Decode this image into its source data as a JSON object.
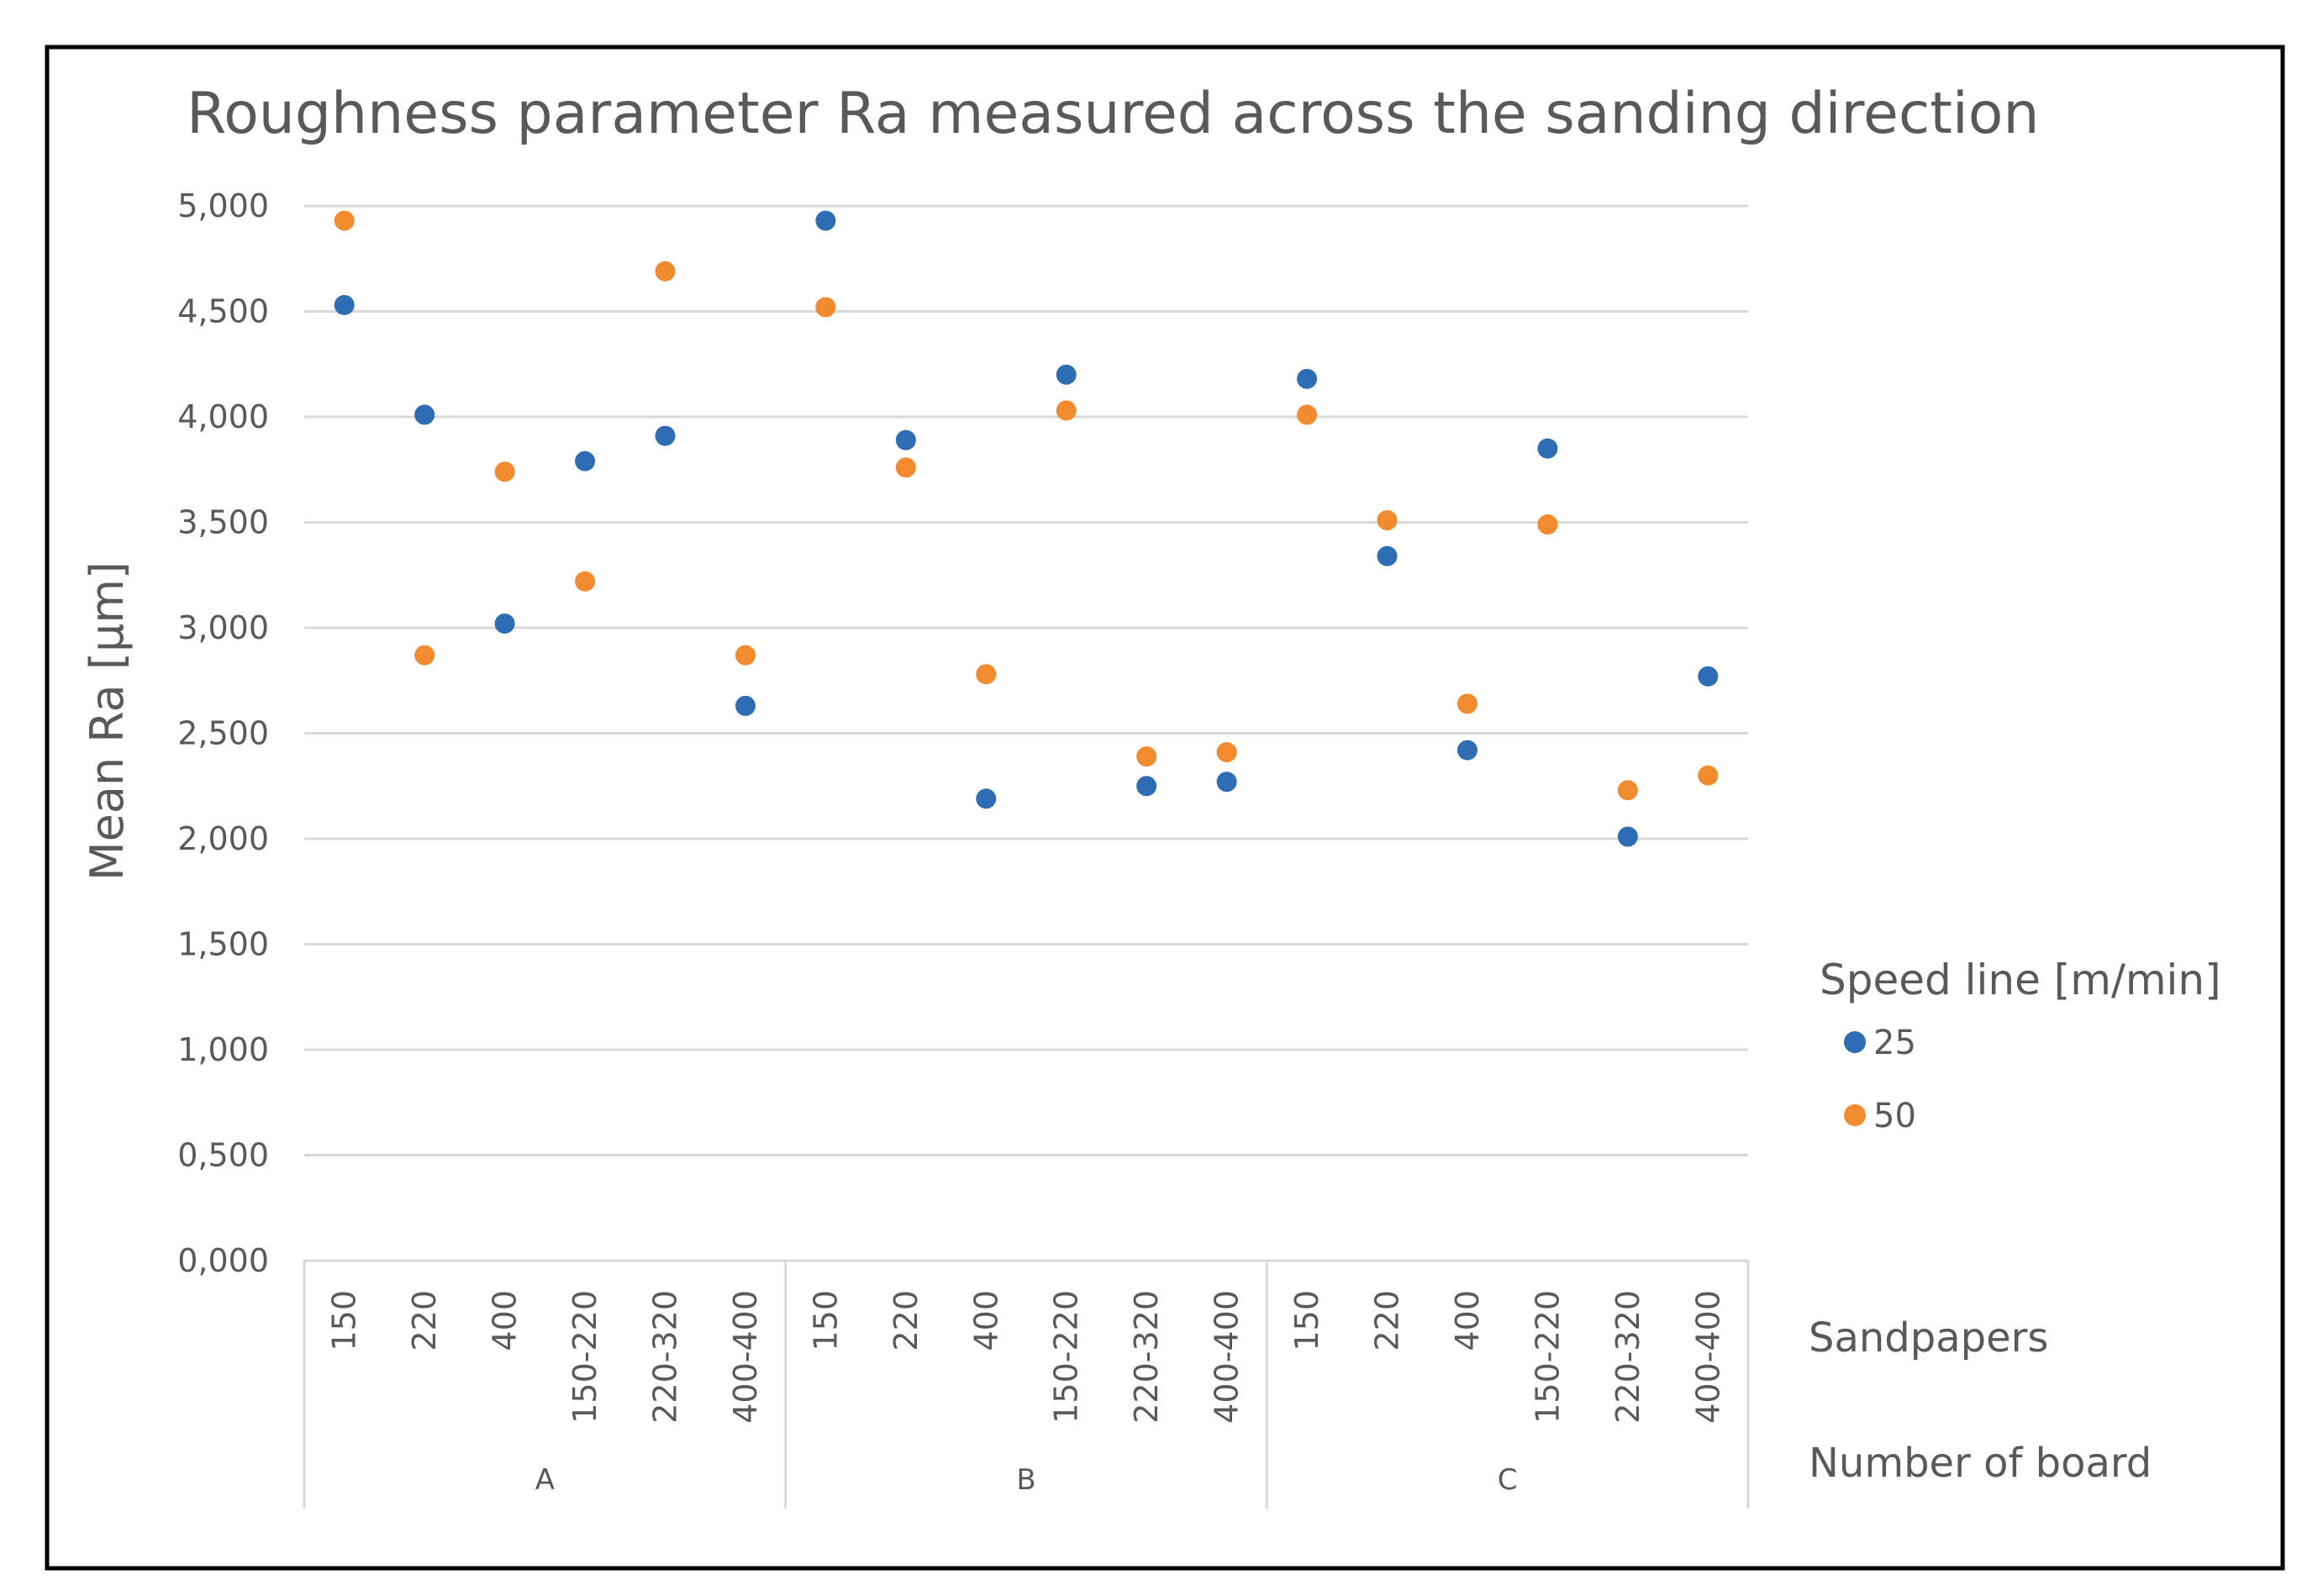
{
  "chart_data": {
    "type": "scatter",
    "title": "Roughness parameter Ra measured across the sanding direction",
    "ylabel": "Mean Ra [μm]",
    "ylim": [
      0,
      5
    ],
    "ytick_labels": [
      "0,000",
      "0,500",
      "1,000",
      "1,500",
      "2,000",
      "2,500",
      "3,000",
      "3,500",
      "4,000",
      "4,500",
      "5,000"
    ],
    "grid": true,
    "categories": [
      "150",
      "220",
      "400",
      "150-220",
      "220-320",
      "400-400",
      "150",
      "220",
      "400",
      "150-220",
      "220-320",
      "400-400",
      "150",
      "220",
      "400",
      "150-220",
      "220-320",
      "400-400"
    ],
    "groups": [
      {
        "name": "A",
        "count": 6
      },
      {
        "name": "B",
        "count": 6
      },
      {
        "name": "C",
        "count": 6
      }
    ],
    "xlabel_categories": "Sandpapers",
    "xlabel_groups": "Number of board",
    "legend": {
      "title": "Speed line [m/min]",
      "placement": "right"
    },
    "series": [
      {
        "name": "25",
        "color": "#2E6DB4",
        "values": [
          4.53,
          4.01,
          3.02,
          3.79,
          3.91,
          2.63,
          4.93,
          3.89,
          2.19,
          4.2,
          2.25,
          2.27,
          4.18,
          3.34,
          2.42,
          3.85,
          2.01,
          2.77
        ]
      },
      {
        "name": "50",
        "color": "#F28A30",
        "values": [
          4.93,
          2.87,
          3.74,
          3.22,
          4.69,
          2.87,
          4.52,
          3.76,
          2.78,
          4.03,
          2.39,
          2.41,
          4.01,
          3.51,
          2.64,
          3.49,
          2.23,
          2.3
        ]
      }
    ]
  }
}
